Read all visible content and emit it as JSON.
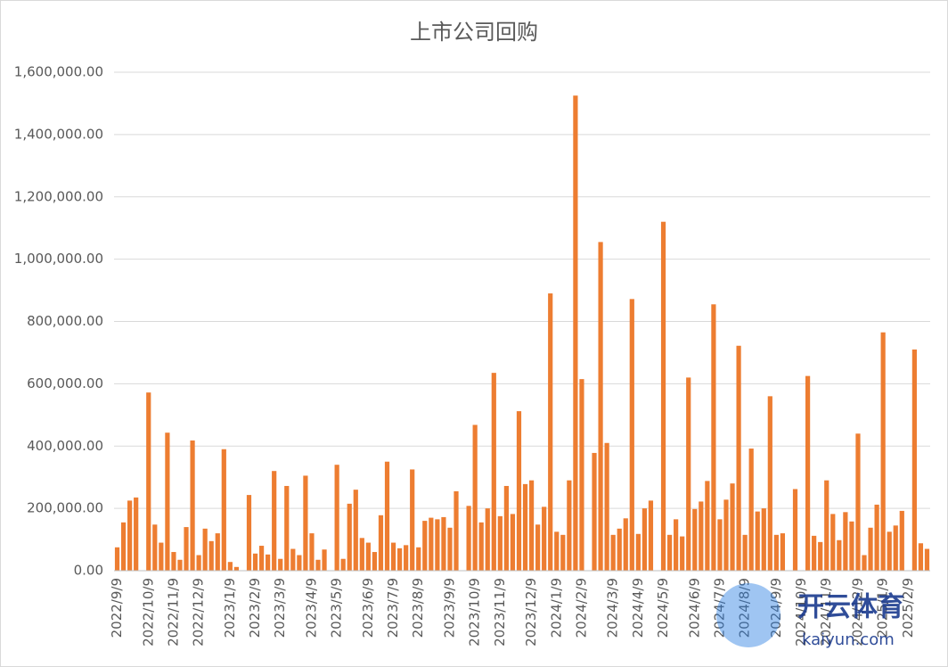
{
  "chart_data": {
    "type": "bar",
    "title": "上市公司回购",
    "categories": [
      "2022/9/9",
      null,
      null,
      null,
      null,
      "2022/10/9",
      null,
      null,
      null,
      "2022/11/9",
      null,
      null,
      null,
      "2022/12/9",
      null,
      null,
      null,
      null,
      "2023/1/9",
      null,
      null,
      null,
      "2023/2/9",
      null,
      null,
      null,
      "2023/3/9",
      null,
      null,
      null,
      null,
      "2023/4/9",
      null,
      null,
      null,
      "2023/5/9",
      null,
      null,
      null,
      null,
      "2023/6/9",
      null,
      null,
      null,
      "2023/7/9",
      null,
      null,
      null,
      "2023/8/9",
      null,
      null,
      null,
      null,
      "2023/9/9",
      null,
      null,
      null,
      "2023/10/9",
      null,
      null,
      null,
      "2023/11/9",
      null,
      null,
      null,
      null,
      "2023/12/9",
      null,
      null,
      null,
      "2024/1/9",
      null,
      null,
      null,
      "2024/2/9",
      null,
      null,
      null,
      null,
      "2024/3/9",
      null,
      null,
      null,
      "2024/4/9",
      null,
      null,
      null,
      "2024/5/9",
      null,
      null,
      null,
      null,
      "2024/6/9",
      null,
      null,
      null,
      "2024/7/9",
      null,
      null,
      null,
      "2024/8/9",
      null,
      null,
      null,
      null,
      "2024/9/9",
      null,
      null,
      null,
      "2024/10/9",
      null,
      null,
      null,
      "2024/11/9",
      null,
      null,
      null,
      null,
      "2024/12/9",
      null,
      null,
      null,
      "2025/1/9",
      null,
      null,
      null,
      "2025/2/9",
      null,
      null,
      null
    ],
    "values": [
      75000,
      155000,
      225000,
      235000,
      0,
      572000,
      148000,
      90000,
      443000,
      60000,
      35000,
      140000,
      418000,
      50000,
      135000,
      95000,
      120000,
      390000,
      28000,
      12000,
      0,
      243000,
      55000,
      80000,
      52000,
      320000,
      38000,
      272000,
      70000,
      50000,
      305000,
      120000,
      35000,
      68000,
      0,
      340000,
      38000,
      215000,
      260000,
      105000,
      90000,
      60000,
      178000,
      350000,
      90000,
      72000,
      82000,
      325000,
      75000,
      160000,
      170000,
      165000,
      172000,
      138000,
      255000,
      0,
      208000,
      468000,
      155000,
      200000,
      635000,
      175000,
      272000,
      182000,
      512000,
      278000,
      290000,
      148000,
      205000,
      890000,
      125000,
      115000,
      290000,
      1525000,
      615000,
      0,
      378000,
      1055000,
      410000,
      115000,
      135000,
      168000,
      872000,
      118000,
      200000,
      225000,
      0,
      1120000,
      115000,
      165000,
      110000,
      620000,
      198000,
      222000,
      288000,
      855000,
      165000,
      228000,
      280000,
      722000,
      115000,
      392000,
      190000,
      200000,
      560000,
      115000,
      120000,
      0,
      262000,
      0,
      625000,
      112000,
      92000,
      290000,
      182000,
      98000,
      188000,
      158000,
      440000,
      50000,
      138000,
      212000,
      765000,
      125000,
      145000,
      192000,
      0,
      710000,
      88000,
      70000
    ],
    "color": "#ed7d31",
    "ylim": [
      0,
      1600000
    ],
    "yticks": [
      {
        "value": 0,
        "label": "0.00"
      },
      {
        "value": 200000,
        "label": "200,000.00"
      },
      {
        "value": 400000,
        "label": "400,000.00"
      },
      {
        "value": 600000,
        "label": "600,000.00"
      },
      {
        "value": 800000,
        "label": "800,000.00"
      },
      {
        "value": 1000000,
        "label": "1,000,000.00"
      },
      {
        "value": 1200000,
        "label": "1,200,000.00"
      },
      {
        "value": 1400000,
        "label": "1,400,000.00"
      },
      {
        "value": 1600000,
        "label": "1,600,000.00"
      }
    ],
    "grid": true
  },
  "watermark": {
    "name": "开云体育",
    "site": "kaiyun.com"
  }
}
